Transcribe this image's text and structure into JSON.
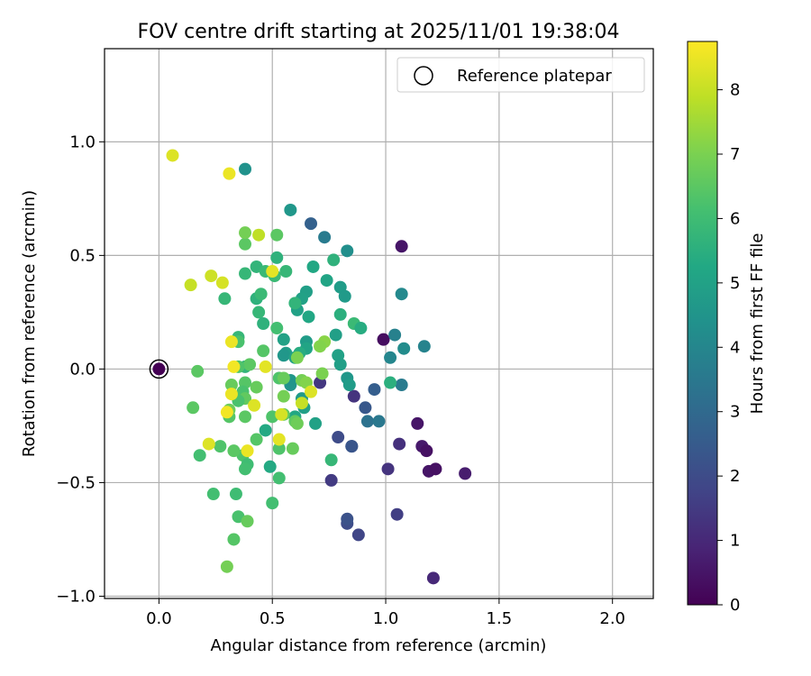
{
  "chart_data": {
    "type": "scatter",
    "title": "FOV centre drift starting at 2025/11/01 19:38:04",
    "xlabel": "Angular distance from reference (arcmin)",
    "ylabel": "Rotation from reference (arcmin)",
    "xlim": [
      -0.24,
      2.18
    ],
    "ylim": [
      -1.01,
      1.41
    ],
    "xticks": [
      0.0,
      0.5,
      1.0,
      1.5,
      2.0
    ],
    "xtick_labels": [
      "0.0",
      "0.5",
      "1.0",
      "1.5",
      "2.0"
    ],
    "yticks": [
      -1.0,
      -0.5,
      0.0,
      0.5,
      1.0
    ],
    "ytick_labels": [
      "−1.0",
      "−0.5",
      "0.0",
      "0.5",
      "1.0"
    ],
    "grid": true,
    "legend": {
      "position": "top-right",
      "entries": [
        "Reference platepar"
      ]
    },
    "reference_point": {
      "x": 0.0,
      "y": 0.0,
      "label": "Reference platepar"
    },
    "colorbar": {
      "label": "Hours from first FF file",
      "range": [
        0,
        8.75
      ],
      "ticks": [
        0,
        1,
        2,
        3,
        4,
        5,
        6,
        7,
        8
      ],
      "tick_labels": [
        "0",
        "1",
        "2",
        "3",
        "4",
        "5",
        "6",
        "7",
        "8"
      ],
      "colormap": "viridis"
    },
    "points": [
      {
        "x": 0.0,
        "y": 0.0,
        "h": 0.0
      },
      {
        "x": 1.07,
        "y": 0.54,
        "h": 0.5
      },
      {
        "x": 0.99,
        "y": 0.13,
        "h": 0.3
      },
      {
        "x": 1.14,
        "y": -0.24,
        "h": 0.5
      },
      {
        "x": 1.16,
        "y": -0.34,
        "h": 0.6
      },
      {
        "x": 1.18,
        "y": -0.36,
        "h": 0.4
      },
      {
        "x": 1.19,
        "y": -0.45,
        "h": 0.5
      },
      {
        "x": 1.22,
        "y": -0.44,
        "h": 0.4
      },
      {
        "x": 1.35,
        "y": -0.46,
        "h": 0.7
      },
      {
        "x": 1.21,
        "y": -0.92,
        "h": 1.0
      },
      {
        "x": 1.06,
        "y": -0.33,
        "h": 1.2
      },
      {
        "x": 1.01,
        "y": -0.44,
        "h": 1.3
      },
      {
        "x": 1.05,
        "y": -0.64,
        "h": 1.6
      },
      {
        "x": 0.86,
        "y": -0.12,
        "h": 1.3
      },
      {
        "x": 0.71,
        "y": -0.06,
        "h": 1.4
      },
      {
        "x": 0.76,
        "y": -0.49,
        "h": 1.5
      },
      {
        "x": 0.88,
        "y": -0.73,
        "h": 1.8
      },
      {
        "x": 0.83,
        "y": -0.68,
        "h": 2.0
      },
      {
        "x": 0.83,
        "y": -0.66,
        "h": 2.2
      },
      {
        "x": 0.79,
        "y": -0.3,
        "h": 2.0
      },
      {
        "x": 0.85,
        "y": -0.34,
        "h": 2.2
      },
      {
        "x": 0.85,
        "y": -0.34,
        "h": 2.3
      },
      {
        "x": 0.91,
        "y": -0.17,
        "h": 2.4
      },
      {
        "x": 0.95,
        "y": -0.09,
        "h": 2.6
      },
      {
        "x": 0.92,
        "y": -0.23,
        "h": 3.3
      },
      {
        "x": 0.97,
        "y": -0.23,
        "h": 3.5
      },
      {
        "x": 1.07,
        "y": -0.07,
        "h": 3.6
      },
      {
        "x": 1.02,
        "y": 0.05,
        "h": 4.0
      },
      {
        "x": 1.04,
        "y": 0.15,
        "h": 3.8
      },
      {
        "x": 1.08,
        "y": 0.09,
        "h": 4.2
      },
      {
        "x": 1.17,
        "y": 0.1,
        "h": 3.9
      },
      {
        "x": 1.07,
        "y": 0.33,
        "h": 4.1
      },
      {
        "x": 0.67,
        "y": 0.64,
        "h": 2.7
      },
      {
        "x": 0.73,
        "y": 0.58,
        "h": 3.6
      },
      {
        "x": 0.83,
        "y": 0.52,
        "h": 4.3
      },
      {
        "x": 0.58,
        "y": 0.7,
        "h": 4.6
      },
      {
        "x": 0.38,
        "y": 0.88,
        "h": 4.4
      },
      {
        "x": 0.8,
        "y": 0.36,
        "h": 4.8
      },
      {
        "x": 0.82,
        "y": 0.32,
        "h": 4.7
      },
      {
        "x": 0.68,
        "y": 0.45,
        "h": 5.2
      },
      {
        "x": 0.74,
        "y": 0.39,
        "h": 5.1
      },
      {
        "x": 0.77,
        "y": 0.48,
        "h": 5.6
      },
      {
        "x": 0.65,
        "y": 0.34,
        "h": 4.9
      },
      {
        "x": 0.63,
        "y": 0.31,
        "h": 5.0
      },
      {
        "x": 0.66,
        "y": 0.23,
        "h": 5.2
      },
      {
        "x": 0.61,
        "y": 0.26,
        "h": 5.0
      },
      {
        "x": 0.6,
        "y": 0.29,
        "h": 5.7
      },
      {
        "x": 0.8,
        "y": 0.24,
        "h": 5.5
      },
      {
        "x": 0.86,
        "y": 0.2,
        "h": 5.9
      },
      {
        "x": 0.89,
        "y": 0.18,
        "h": 5.4
      },
      {
        "x": 0.78,
        "y": 0.15,
        "h": 4.9
      },
      {
        "x": 0.65,
        "y": 0.12,
        "h": 4.8
      },
      {
        "x": 0.65,
        "y": 0.09,
        "h": 5.1
      },
      {
        "x": 0.55,
        "y": 0.13,
        "h": 5.0
      },
      {
        "x": 0.56,
        "y": 0.07,
        "h": 4.8
      },
      {
        "x": 0.55,
        "y": 0.06,
        "h": 4.6
      },
      {
        "x": 0.6,
        "y": 0.05,
        "h": 5.0
      },
      {
        "x": 0.62,
        "y": 0.07,
        "h": 5.4
      },
      {
        "x": 0.79,
        "y": 0.06,
        "h": 5.0
      },
      {
        "x": 0.8,
        "y": 0.02,
        "h": 4.9
      },
      {
        "x": 0.83,
        "y": -0.04,
        "h": 4.6
      },
      {
        "x": 0.84,
        "y": -0.07,
        "h": 4.8
      },
      {
        "x": 1.02,
        "y": -0.06,
        "h": 5.5
      },
      {
        "x": 0.58,
        "y": -0.05,
        "h": 4.6
      },
      {
        "x": 0.58,
        "y": -0.07,
        "h": 4.5
      },
      {
        "x": 0.63,
        "y": -0.13,
        "h": 4.7
      },
      {
        "x": 0.64,
        "y": -0.17,
        "h": 4.9
      },
      {
        "x": 0.69,
        "y": -0.24,
        "h": 5.0
      },
      {
        "x": 0.6,
        "y": -0.21,
        "h": 5.2
      },
      {
        "x": 0.47,
        "y": -0.27,
        "h": 5.3
      },
      {
        "x": 0.52,
        "y": 0.49,
        "h": 5.6
      },
      {
        "x": 0.56,
        "y": 0.43,
        "h": 5.8
      },
      {
        "x": 0.43,
        "y": 0.45,
        "h": 5.7
      },
      {
        "x": 0.47,
        "y": 0.43,
        "h": 5.9
      },
      {
        "x": 0.38,
        "y": 0.42,
        "h": 5.8
      },
      {
        "x": 0.51,
        "y": 0.41,
        "h": 5.9
      },
      {
        "x": 0.43,
        "y": 0.31,
        "h": 5.6
      },
      {
        "x": 0.45,
        "y": 0.33,
        "h": 5.9
      },
      {
        "x": 0.44,
        "y": 0.25,
        "h": 5.8
      },
      {
        "x": 0.29,
        "y": 0.31,
        "h": 5.8
      },
      {
        "x": 0.46,
        "y": 0.2,
        "h": 5.6
      },
      {
        "x": 0.52,
        "y": 0.18,
        "h": 6.1
      },
      {
        "x": 0.35,
        "y": 0.14,
        "h": 5.8
      },
      {
        "x": 0.35,
        "y": 0.12,
        "h": 6.2
      },
      {
        "x": 0.46,
        "y": 0.08,
        "h": 6.4
      },
      {
        "x": 0.38,
        "y": 0.01,
        "h": 5.7
      },
      {
        "x": 0.4,
        "y": 0.02,
        "h": 6.5
      },
      {
        "x": 0.35,
        "y": 0.01,
        "h": 6.3
      },
      {
        "x": 0.53,
        "y": -0.04,
        "h": 6.3
      },
      {
        "x": 0.55,
        "y": -0.04,
        "h": 6.7
      },
      {
        "x": 0.63,
        "y": -0.05,
        "h": 6.9
      },
      {
        "x": 0.65,
        "y": -0.06,
        "h": 7.1
      },
      {
        "x": 0.72,
        "y": -0.02,
        "h": 7.0
      },
      {
        "x": 0.73,
        "y": 0.12,
        "h": 7.2
      },
      {
        "x": 0.71,
        "y": 0.1,
        "h": 7.1
      },
      {
        "x": 0.61,
        "y": 0.05,
        "h": 7.0
      },
      {
        "x": 0.38,
        "y": -0.06,
        "h": 6.4
      },
      {
        "x": 0.37,
        "y": -0.1,
        "h": 6.2
      },
      {
        "x": 0.38,
        "y": -0.13,
        "h": 6.6
      },
      {
        "x": 0.35,
        "y": -0.14,
        "h": 6.2
      },
      {
        "x": 0.32,
        "y": -0.07,
        "h": 6.7
      },
      {
        "x": 0.43,
        "y": -0.08,
        "h": 6.7
      },
      {
        "x": 0.38,
        "y": -0.21,
        "h": 6.5
      },
      {
        "x": 0.31,
        "y": -0.21,
        "h": 6.4
      },
      {
        "x": 0.31,
        "y": -0.18,
        "h": 6.8
      },
      {
        "x": 0.5,
        "y": -0.21,
        "h": 6.3
      },
      {
        "x": 0.55,
        "y": -0.12,
        "h": 6.9
      },
      {
        "x": 0.55,
        "y": -0.2,
        "h": 6.6
      },
      {
        "x": 0.6,
        "y": -0.23,
        "h": 6.6
      },
      {
        "x": 0.61,
        "y": -0.24,
        "h": 6.8
      },
      {
        "x": 0.43,
        "y": -0.31,
        "h": 6.4
      },
      {
        "x": 0.53,
        "y": -0.35,
        "h": 6.3
      },
      {
        "x": 0.59,
        "y": -0.35,
        "h": 6.7
      },
      {
        "x": 0.37,
        "y": -0.38,
        "h": 6.3
      },
      {
        "x": 0.33,
        "y": -0.36,
        "h": 6.5
      },
      {
        "x": 0.39,
        "y": -0.42,
        "h": 6.0
      },
      {
        "x": 0.38,
        "y": -0.44,
        "h": 6.1
      },
      {
        "x": 0.27,
        "y": -0.34,
        "h": 6.3
      },
      {
        "x": 0.18,
        "y": -0.38,
        "h": 6.1
      },
      {
        "x": 0.15,
        "y": -0.17,
        "h": 6.5
      },
      {
        "x": 0.17,
        "y": -0.01,
        "h": 6.5
      },
      {
        "x": 0.24,
        "y": -0.55,
        "h": 6.1
      },
      {
        "x": 0.34,
        "y": -0.55,
        "h": 6.0
      },
      {
        "x": 0.53,
        "y": -0.48,
        "h": 6.1
      },
      {
        "x": 0.5,
        "y": -0.59,
        "h": 6.1
      },
      {
        "x": 0.35,
        "y": -0.65,
        "h": 6.2
      },
      {
        "x": 0.39,
        "y": -0.67,
        "h": 6.7
      },
      {
        "x": 0.33,
        "y": -0.75,
        "h": 6.4
      },
      {
        "x": 0.3,
        "y": -0.87,
        "h": 6.9
      },
      {
        "x": 0.76,
        "y": -0.4,
        "h": 5.8
      },
      {
        "x": 0.49,
        "y": -0.43,
        "h": 5.3
      },
      {
        "x": 0.38,
        "y": 0.55,
        "h": 6.5
      },
      {
        "x": 0.38,
        "y": 0.6,
        "h": 6.9
      },
      {
        "x": 0.52,
        "y": 0.59,
        "h": 6.5
      },
      {
        "x": 0.44,
        "y": 0.59,
        "h": 7.9
      },
      {
        "x": 0.06,
        "y": 0.94,
        "h": 8.3
      },
      {
        "x": 0.31,
        "y": 0.86,
        "h": 8.5
      },
      {
        "x": 0.14,
        "y": 0.37,
        "h": 8.0
      },
      {
        "x": 0.23,
        "y": 0.41,
        "h": 8.1
      },
      {
        "x": 0.28,
        "y": 0.38,
        "h": 8.2
      },
      {
        "x": 0.5,
        "y": 0.43,
        "h": 8.4
      },
      {
        "x": 0.32,
        "y": 0.12,
        "h": 8.5
      },
      {
        "x": 0.47,
        "y": 0.01,
        "h": 8.4
      },
      {
        "x": 0.33,
        "y": 0.01,
        "h": 8.6
      },
      {
        "x": 0.32,
        "y": -0.11,
        "h": 8.5
      },
      {
        "x": 0.42,
        "y": -0.16,
        "h": 8.3
      },
      {
        "x": 0.3,
        "y": -0.19,
        "h": 8.6
      },
      {
        "x": 0.53,
        "y": -0.31,
        "h": 8.4
      },
      {
        "x": 0.22,
        "y": -0.33,
        "h": 8.3
      },
      {
        "x": 0.39,
        "y": -0.36,
        "h": 8.5
      },
      {
        "x": 0.54,
        "y": -0.2,
        "h": 8.2
      },
      {
        "x": 0.63,
        "y": -0.15,
        "h": 8.0
      },
      {
        "x": 0.67,
        "y": -0.1,
        "h": 8.3
      }
    ]
  }
}
